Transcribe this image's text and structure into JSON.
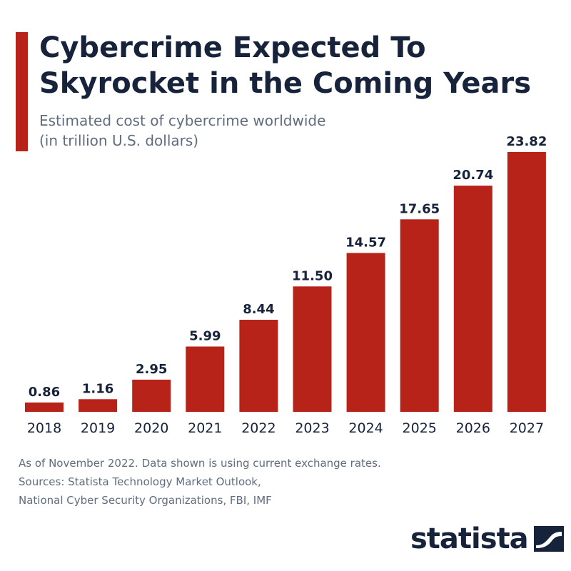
{
  "colors": {
    "accent": "#b72319",
    "bar": "#b72319",
    "title": "#16233a",
    "text": "#5f6d7e",
    "label": "#16233a"
  },
  "chart_data": {
    "type": "bar",
    "title": "Cybercrime Expected To Skyrocket in the Coming Years",
    "subtitle_lines": [
      "Estimated cost of cybercrime worldwide",
      "(in trillion U.S. dollars)"
    ],
    "categories": [
      "2018",
      "2019",
      "2020",
      "2021",
      "2022",
      "2023",
      "2024",
      "2025",
      "2026",
      "2027"
    ],
    "values": [
      0.86,
      1.16,
      2.95,
      5.99,
      8.44,
      11.5,
      14.57,
      17.65,
      20.74,
      23.82
    ],
    "value_labels": [
      "0.86",
      "1.16",
      "2.95",
      "5.99",
      "8.44",
      "11.50",
      "14.57",
      "17.65",
      "20.74",
      "23.82"
    ],
    "ylim": [
      0,
      23.82
    ],
    "grid": false,
    "legend": "none"
  },
  "footnote": {
    "note": "As of November 2022. Data shown is using current exchange rates.",
    "sources_line1": "Sources: Statista Technology Market Outlook,",
    "sources_line2": "National Cyber Security Organizations, FBI, IMF"
  },
  "brand": {
    "name": "statista",
    "logo_icon": "statista-logo-icon"
  }
}
